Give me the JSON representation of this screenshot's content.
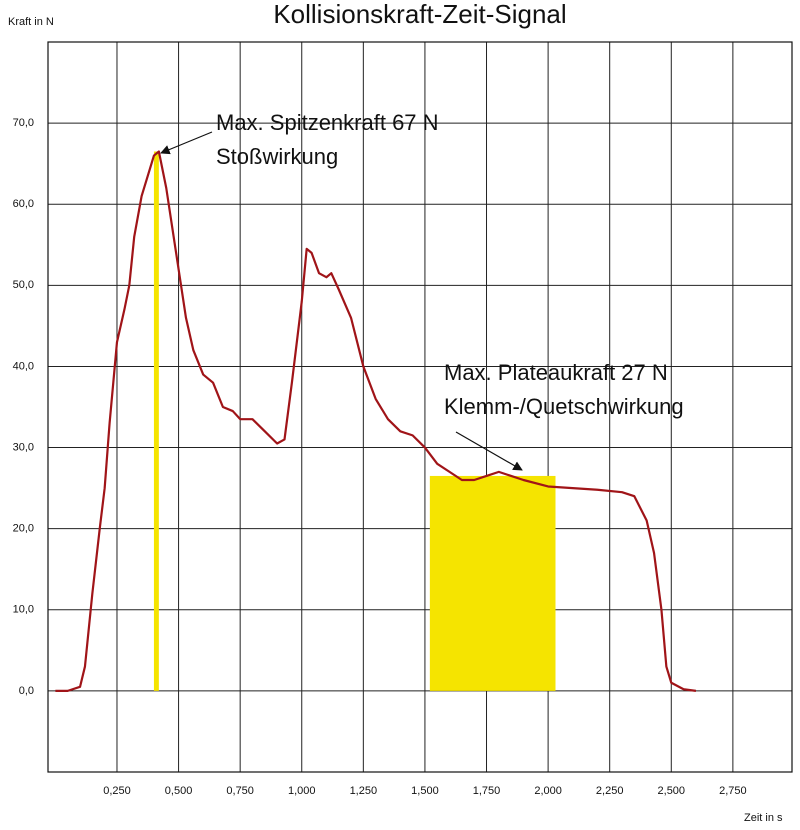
{
  "chart_data": {
    "type": "line",
    "title": "Kollisionskraft-Zeit-Signal",
    "y_label": "Kraft in N",
    "x_label": "Zeit in s",
    "x": [
      0.0,
      0.05,
      0.1,
      0.12,
      0.15,
      0.18,
      0.2,
      0.22,
      0.25,
      0.28,
      0.3,
      0.32,
      0.35,
      0.38,
      0.4,
      0.42,
      0.45,
      0.48,
      0.5,
      0.53,
      0.56,
      0.6,
      0.64,
      0.68,
      0.72,
      0.75,
      0.8,
      0.85,
      0.9,
      0.93,
      0.96,
      1.0,
      1.02,
      1.04,
      1.07,
      1.1,
      1.12,
      1.15,
      1.2,
      1.25,
      1.3,
      1.35,
      1.4,
      1.45,
      1.5,
      1.55,
      1.6,
      1.65,
      1.7,
      1.75,
      1.8,
      1.85,
      1.9,
      2.0,
      2.1,
      2.2,
      2.3,
      2.35,
      2.4,
      2.43,
      2.46,
      2.48,
      2.5,
      2.55,
      2.6
    ],
    "series": [
      {
        "color": "#a01418",
        "values": [
          0,
          0,
          0.5,
          3,
          12,
          20,
          25,
          33,
          43,
          47,
          50,
          56,
          61,
          64,
          66,
          66.5,
          62,
          56,
          52,
          46,
          42,
          39,
          38,
          35,
          34.5,
          33.5,
          33.5,
          32,
          30.5,
          31,
          38,
          48,
          54.5,
          54,
          51.5,
          51,
          51.5,
          49.5,
          46,
          40,
          36,
          33.5,
          32,
          31.5,
          30,
          28,
          27,
          26,
          26,
          26.5,
          27,
          26.5,
          26,
          25.2,
          25,
          24.8,
          24.5,
          24,
          21,
          17,
          10,
          3,
          1,
          0.2,
          0
        ]
      }
    ],
    "highlights": [
      {
        "x": [
          0.4,
          0.42
        ],
        "y": 66.5
      },
      {
        "x": [
          1.52,
          2.03
        ],
        "y": 26.5
      }
    ],
    "highlight_color": "#f5e400",
    "annotations": [
      "Max. Spitzenkraft 67 N",
      "Stoßwirkung",
      "Max. Plateaukraft 27 N",
      "Klemm-/Quetschwirkung"
    ],
    "xlim": [
      -0.03,
      2.99
    ],
    "ylim": [
      -10,
      80
    ],
    "xticks": [
      {
        "value": 0.25,
        "label": "0,250"
      },
      {
        "value": 0.5,
        "label": "0,500"
      },
      {
        "value": 0.75,
        "label": "0,750"
      },
      {
        "value": 1.0,
        "label": "1,000"
      },
      {
        "value": 1.25,
        "label": "1,250"
      },
      {
        "value": 1.5,
        "label": "1,500"
      },
      {
        "value": 1.75,
        "label": "1,750"
      },
      {
        "value": 2.0,
        "label": "2,000"
      },
      {
        "value": 2.25,
        "label": "2,250"
      },
      {
        "value": 2.5,
        "label": "2,500"
      },
      {
        "value": 2.75,
        "label": "2,750"
      }
    ],
    "yticks": [
      {
        "value": 0,
        "label": "0,0"
      },
      {
        "value": 10,
        "label": "10,0"
      },
      {
        "value": 20,
        "label": "20,0"
      },
      {
        "value": 30,
        "label": "30,0"
      },
      {
        "value": 40,
        "label": "40,0"
      },
      {
        "value": 50,
        "label": "50,0"
      },
      {
        "value": 60,
        "label": "60,0"
      },
      {
        "value": 70,
        "label": "70,0"
      }
    ],
    "grid": true
  }
}
